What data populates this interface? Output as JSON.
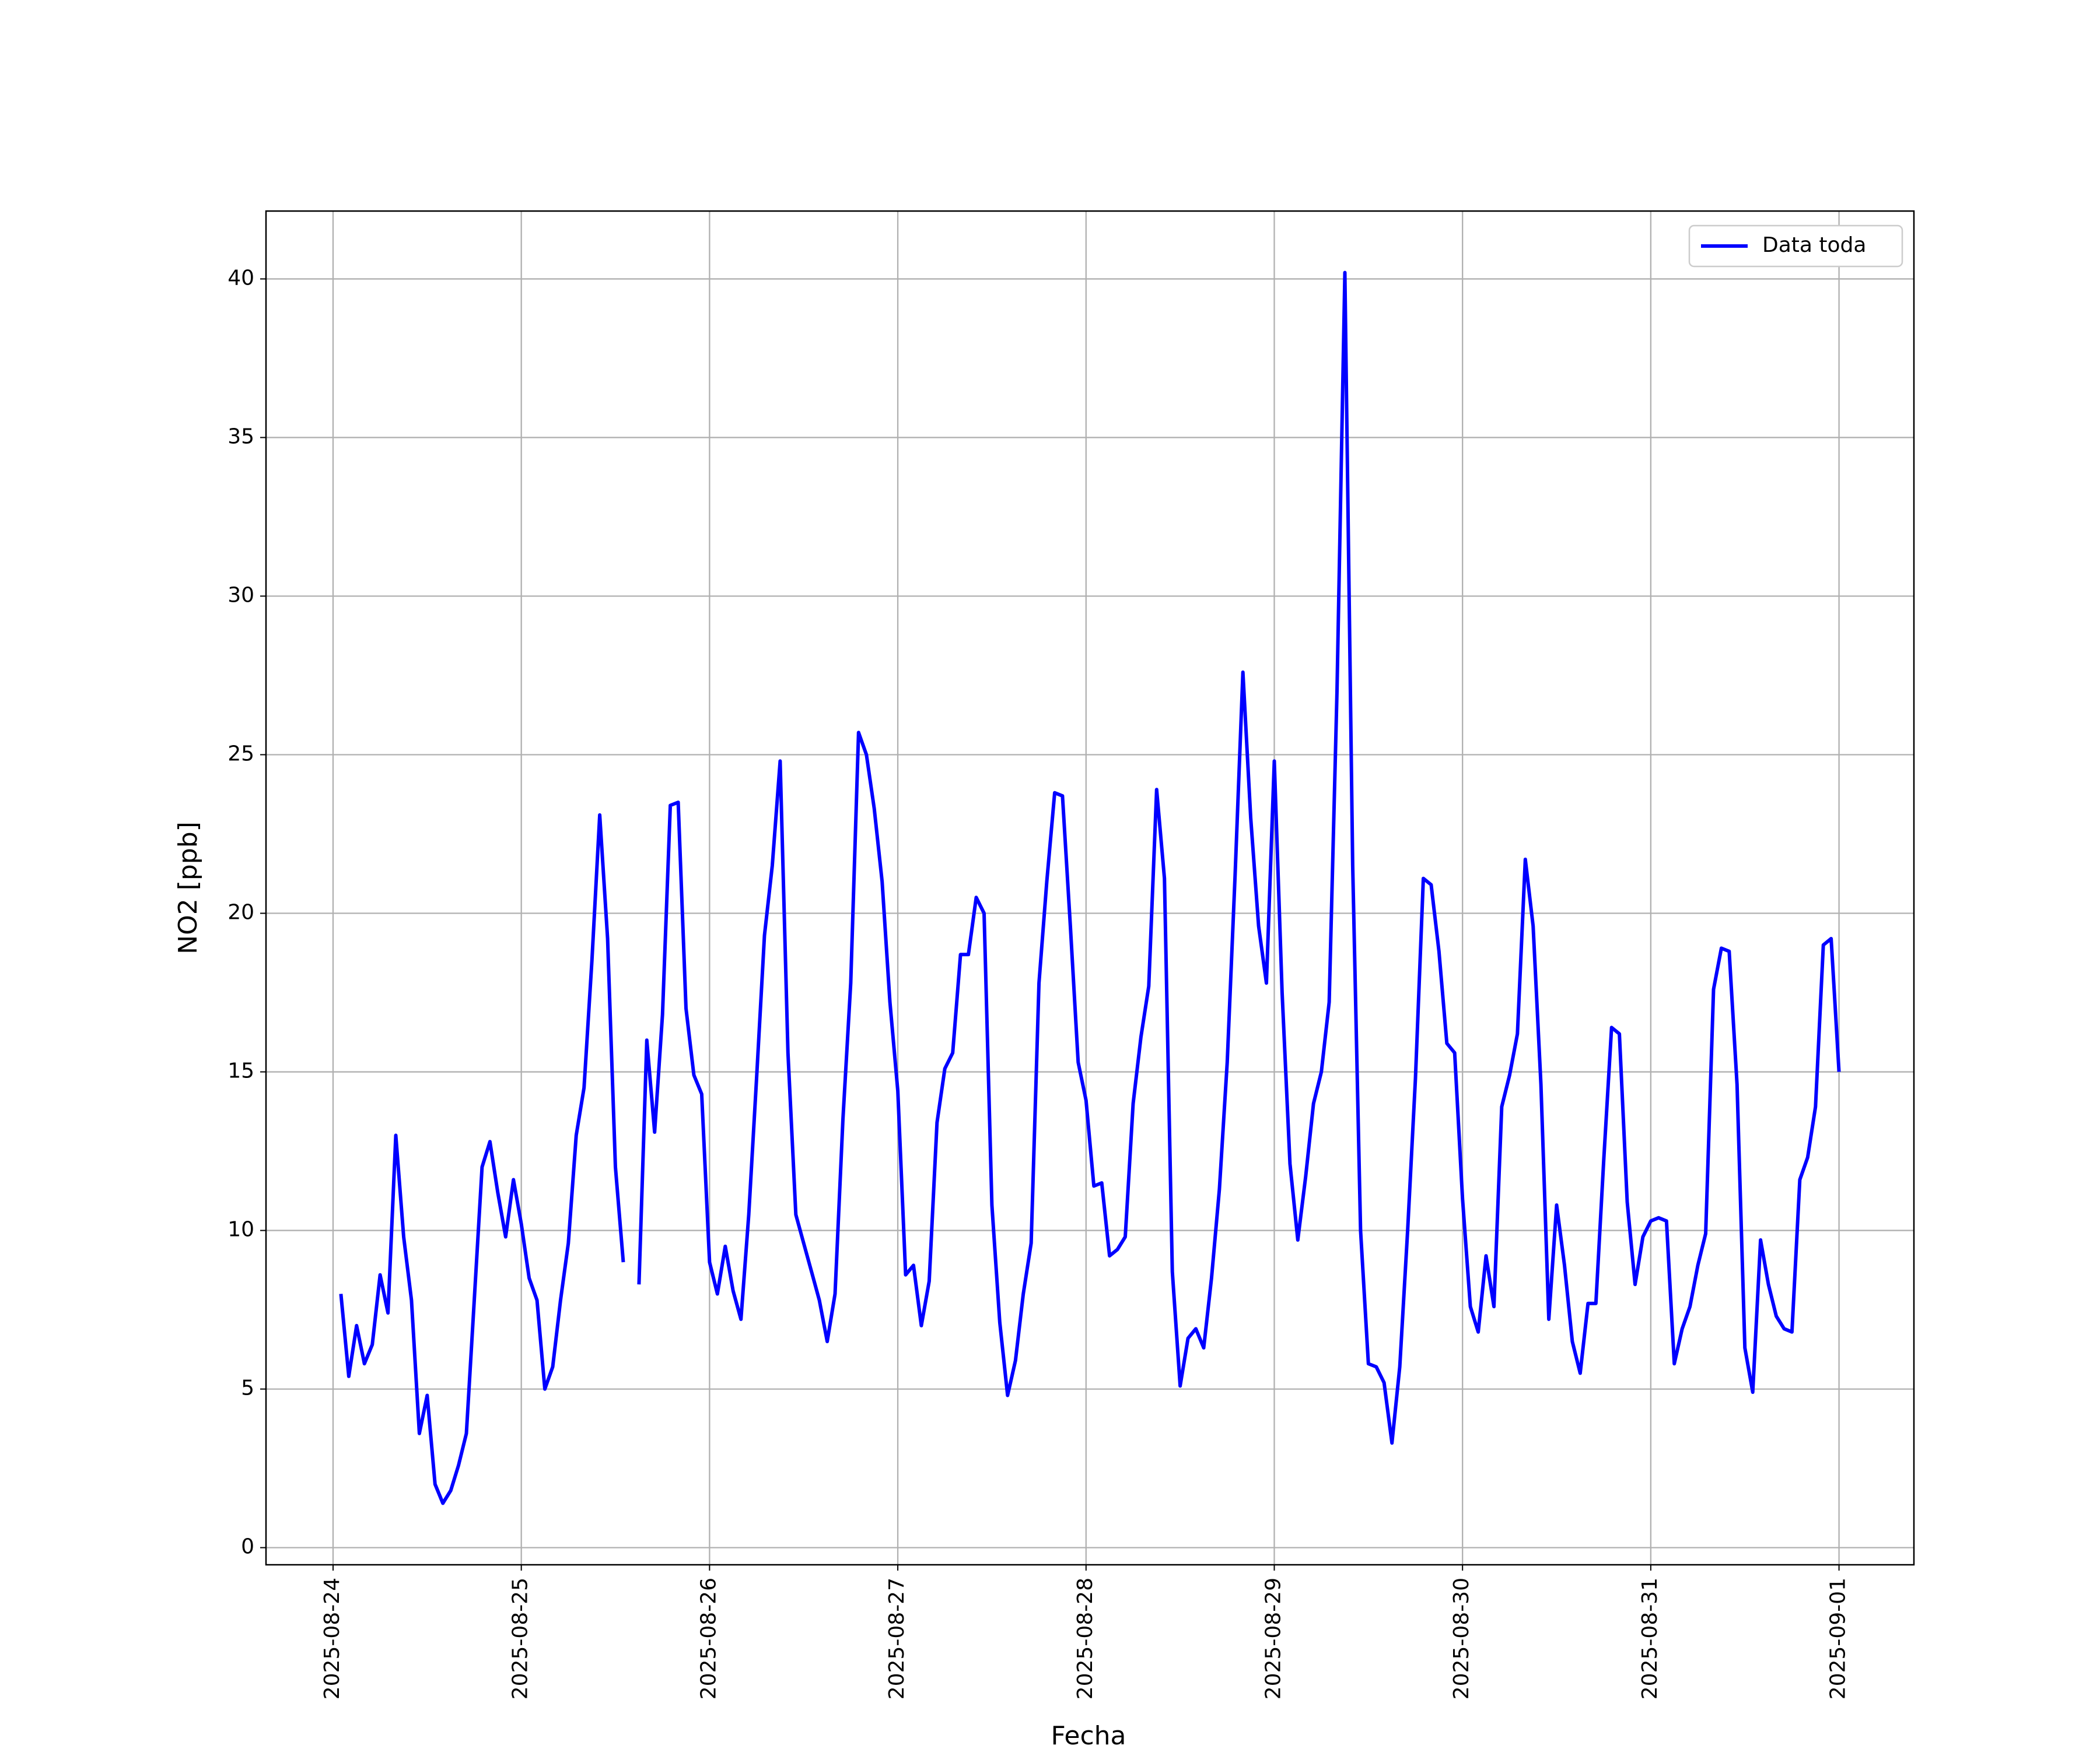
{
  "chart_data": {
    "type": "line",
    "xlabel": "Fecha",
    "ylabel": "NO2 [ppb]",
    "x": [
      "2025-08-24T01:00",
      "2025-08-24T02:00",
      "2025-08-24T03:00",
      "2025-08-24T04:00",
      "2025-08-24T05:00",
      "2025-08-24T06:00",
      "2025-08-24T07:00",
      "2025-08-24T08:00",
      "2025-08-24T09:00",
      "2025-08-24T10:00",
      "2025-08-24T11:00",
      "2025-08-24T12:00",
      "2025-08-24T13:00",
      "2025-08-24T14:00",
      "2025-08-24T15:00",
      "2025-08-24T16:00",
      "2025-08-24T17:00",
      "2025-08-24T18:00",
      "2025-08-24T19:00",
      "2025-08-24T20:00",
      "2025-08-24T21:00",
      "2025-08-24T22:00",
      "2025-08-24T23:00",
      "2025-08-25T00:00",
      "2025-08-25T01:00",
      "2025-08-25T02:00",
      "2025-08-25T03:00",
      "2025-08-25T04:00",
      "2025-08-25T05:00",
      "2025-08-25T06:00",
      "2025-08-25T07:00",
      "2025-08-25T08:00",
      "2025-08-25T09:00",
      "2025-08-25T10:00",
      "2025-08-25T11:00",
      "2025-08-25T12:00",
      "2025-08-25T13:00",
      "2025-08-25T14:00",
      "2025-08-25T15:00",
      "2025-08-25T16:00",
      "2025-08-25T17:00",
      "2025-08-25T18:00",
      "2025-08-25T19:00",
      "2025-08-25T20:00",
      "2025-08-25T21:00",
      "2025-08-25T22:00",
      "2025-08-25T23:00",
      "2025-08-26T00:00",
      "2025-08-26T01:00",
      "2025-08-26T02:00",
      "2025-08-26T03:00",
      "2025-08-26T04:00",
      "2025-08-26T05:00",
      "2025-08-26T06:00",
      "2025-08-26T07:00",
      "2025-08-26T08:00",
      "2025-08-26T09:00",
      "2025-08-26T10:00",
      "2025-08-26T11:00",
      "2025-08-26T12:00",
      "2025-08-26T13:00",
      "2025-08-26T14:00",
      "2025-08-26T15:00",
      "2025-08-26T16:00",
      "2025-08-26T17:00",
      "2025-08-26T18:00",
      "2025-08-26T19:00",
      "2025-08-26T20:00",
      "2025-08-26T21:00",
      "2025-08-26T22:00",
      "2025-08-26T23:00",
      "2025-08-27T00:00",
      "2025-08-27T01:00",
      "2025-08-27T02:00",
      "2025-08-27T03:00",
      "2025-08-27T04:00",
      "2025-08-27T05:00",
      "2025-08-27T06:00",
      "2025-08-27T07:00",
      "2025-08-27T08:00",
      "2025-08-27T09:00",
      "2025-08-27T10:00",
      "2025-08-27T11:00",
      "2025-08-27T12:00",
      "2025-08-27T13:00",
      "2025-08-27T14:00",
      "2025-08-27T15:00",
      "2025-08-27T16:00",
      "2025-08-27T17:00",
      "2025-08-27T18:00",
      "2025-08-27T19:00",
      "2025-08-27T20:00",
      "2025-08-27T21:00",
      "2025-08-27T22:00",
      "2025-08-27T23:00",
      "2025-08-28T00:00",
      "2025-08-28T01:00",
      "2025-08-28T02:00",
      "2025-08-28T03:00",
      "2025-08-28T04:00",
      "2025-08-28T05:00",
      "2025-08-28T06:00",
      "2025-08-28T07:00",
      "2025-08-28T08:00",
      "2025-08-28T09:00",
      "2025-08-28T10:00",
      "2025-08-28T11:00",
      "2025-08-28T12:00",
      "2025-08-28T13:00",
      "2025-08-28T14:00",
      "2025-08-28T15:00",
      "2025-08-28T16:00",
      "2025-08-28T17:00",
      "2025-08-28T18:00",
      "2025-08-28T19:00",
      "2025-08-28T20:00",
      "2025-08-28T21:00",
      "2025-08-28T22:00",
      "2025-08-28T23:00",
      "2025-08-29T00:00",
      "2025-08-29T01:00",
      "2025-08-29T02:00",
      "2025-08-29T03:00",
      "2025-08-29T04:00",
      "2025-08-29T05:00",
      "2025-08-29T06:00",
      "2025-08-29T07:00",
      "2025-08-29T08:00",
      "2025-08-29T09:00",
      "2025-08-29T10:00",
      "2025-08-29T11:00",
      "2025-08-29T12:00",
      "2025-08-29T13:00",
      "2025-08-29T14:00",
      "2025-08-29T15:00",
      "2025-08-29T16:00",
      "2025-08-29T17:00",
      "2025-08-29T18:00",
      "2025-08-29T19:00",
      "2025-08-29T20:00",
      "2025-08-29T21:00",
      "2025-08-29T22:00",
      "2025-08-29T23:00",
      "2025-08-30T00:00",
      "2025-08-30T01:00",
      "2025-08-30T02:00",
      "2025-08-30T03:00",
      "2025-08-30T04:00",
      "2025-08-30T05:00",
      "2025-08-30T06:00",
      "2025-08-30T07:00",
      "2025-08-30T08:00",
      "2025-08-30T09:00",
      "2025-08-30T10:00",
      "2025-08-30T11:00",
      "2025-08-30T12:00",
      "2025-08-30T13:00",
      "2025-08-30T14:00",
      "2025-08-30T15:00",
      "2025-08-30T16:00",
      "2025-08-30T17:00",
      "2025-08-30T18:00",
      "2025-08-30T19:00",
      "2025-08-30T20:00",
      "2025-08-30T21:00",
      "2025-08-30T22:00",
      "2025-08-30T23:00",
      "2025-08-31T00:00",
      "2025-08-31T01:00",
      "2025-08-31T02:00",
      "2025-08-31T03:00",
      "2025-08-31T04:00",
      "2025-08-31T05:00",
      "2025-08-31T06:00",
      "2025-08-31T07:00",
      "2025-08-31T08:00",
      "2025-08-31T09:00",
      "2025-08-31T10:00",
      "2025-08-31T11:00",
      "2025-08-31T12:00",
      "2025-08-31T13:00",
      "2025-08-31T14:00",
      "2025-08-31T15:00",
      "2025-08-31T16:00",
      "2025-08-31T17:00",
      "2025-08-31T18:00",
      "2025-08-31T19:00",
      "2025-08-31T20:00",
      "2025-08-31T21:00",
      "2025-08-31T22:00",
      "2025-08-31T23:00",
      "2025-09-01T00:00"
    ],
    "series": [
      {
        "name": "Data toda",
        "color": "#0000ff",
        "values": [
          8.0,
          5.4,
          7.0,
          5.8,
          6.4,
          8.6,
          7.4,
          13.0,
          9.8,
          7.8,
          3.6,
          4.8,
          2.0,
          1.4,
          1.8,
          2.6,
          3.6,
          7.8,
          12.0,
          12.8,
          11.2,
          9.8,
          11.6,
          10.2,
          8.5,
          7.8,
          5.0,
          5.7,
          7.8,
          9.6,
          13.0,
          14.5,
          18.5,
          23.1,
          19.2,
          12.0,
          9.0,
          null,
          8.3,
          16.0,
          13.1,
          16.8,
          23.4,
          23.5,
          17.0,
          14.9,
          14.3,
          9.0,
          8.0,
          9.5,
          8.1,
          7.2,
          10.5,
          14.8,
          19.3,
          21.5,
          24.8,
          15.6,
          10.5,
          9.6,
          8.7,
          7.8,
          6.5,
          8.0,
          13.5,
          17.8,
          25.7,
          25.0,
          23.3,
          21.0,
          17.2,
          14.4,
          8.6,
          8.9,
          7.0,
          8.4,
          13.4,
          15.1,
          15.6,
          18.7,
          18.7,
          20.5,
          20.0,
          10.8,
          7.1,
          4.8,
          5.9,
          8.0,
          9.6,
          17.8,
          21.0,
          23.8,
          23.7,
          19.6,
          15.3,
          14.1,
          11.4,
          11.5,
          9.2,
          9.4,
          9.8,
          14.0,
          16.1,
          17.7,
          23.9,
          21.1,
          8.7,
          5.1,
          6.6,
          6.9,
          6.3,
          8.5,
          11.3,
          15.3,
          21.2,
          27.6,
          23.0,
          19.6,
          17.8,
          24.8,
          17.5,
          12.1,
          9.7,
          11.7,
          14.0,
          15.0,
          17.2,
          27.0,
          40.2,
          21.5,
          10.0,
          5.8,
          5.7,
          5.2,
          3.3,
          5.7,
          10.0,
          14.8,
          21.1,
          20.9,
          18.8,
          15.9,
          15.6,
          11.0,
          7.6,
          6.8,
          9.2,
          7.6,
          13.9,
          14.9,
          16.2,
          21.7,
          19.6,
          14.6,
          7.2,
          10.8,
          8.9,
          6.5,
          5.5,
          7.7,
          7.7,
          12.2,
          16.4,
          16.2,
          10.9,
          8.3,
          9.8,
          10.3,
          10.4,
          10.3,
          5.8,
          6.9,
          7.6,
          8.9,
          9.9,
          17.6,
          18.9,
          18.8,
          14.6,
          6.3,
          4.9,
          9.7,
          8.3,
          7.3,
          6.9,
          6.8,
          11.6,
          12.3,
          13.9,
          19.0,
          19.2,
          15.0
        ]
      }
    ],
    "xlim": [
      "2025-08-23T15:27",
      "2025-09-01T09:33"
    ],
    "xticks": [
      "2025-08-24",
      "2025-08-25",
      "2025-08-26",
      "2025-08-27",
      "2025-08-28",
      "2025-08-29",
      "2025-08-30",
      "2025-08-31",
      "2025-09-01"
    ],
    "ylim": [
      -0.54,
      42.14
    ],
    "yticks": [
      0,
      5,
      10,
      15,
      20,
      25,
      30,
      35,
      40
    ],
    "grid": true,
    "legend": "upper right"
  }
}
